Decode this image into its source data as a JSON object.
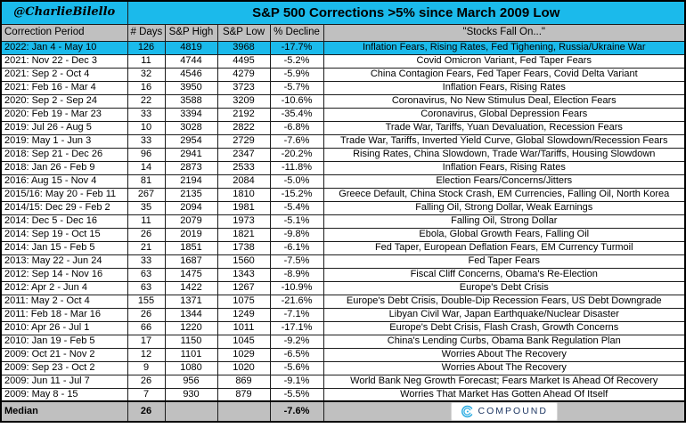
{
  "header": {
    "credit": "@CharlieBilello",
    "title": "S&P 500 Corrections >5% since March 2009 Low"
  },
  "chart_data": {
    "type": "table",
    "title": "S&P 500 Corrections >5% since March 2009 Low",
    "columns": [
      "Correction Period",
      "# Days",
      "S&P High",
      "S&P Low",
      "% Decline",
      "\"Stocks Fall On...\""
    ],
    "highlighted_row_index": 0,
    "rows": [
      [
        "2022: Jan 4 - May 10",
        126,
        4819,
        3968,
        "-17.7%",
        "Inflation Fears, Rising Rates, Fed Tighening, Russia/Ukraine War"
      ],
      [
        "2021: Nov 22 - Dec 3",
        11,
        4744,
        4495,
        "-5.2%",
        "Covid Omicron Variant, Fed Taper Fears"
      ],
      [
        "2021: Sep 2 - Oct 4",
        32,
        4546,
        4279,
        "-5.9%",
        "China Contagion Fears, Fed Taper Fears, Covid Delta Variant"
      ],
      [
        "2021: Feb 16 - Mar 4",
        16,
        3950,
        3723,
        "-5.7%",
        "Inflation Fears, Rising Rates"
      ],
      [
        "2020: Sep 2 - Sep 24",
        22,
        3588,
        3209,
        "-10.6%",
        "Coronavirus, No New Stimulus Deal, Election Fears"
      ],
      [
        "2020: Feb 19 - Mar 23",
        33,
        3394,
        2192,
        "-35.4%",
        "Coronavirus, Global Depression Fears"
      ],
      [
        "2019: Jul 26 - Aug 5",
        10,
        3028,
        2822,
        "-6.8%",
        "Trade War, Tariffs, Yuan Devaluation, Recession Fears"
      ],
      [
        "2019: May 1 - Jun 3",
        33,
        2954,
        2729,
        "-7.6%",
        "Trade War, Tariffs, Inverted Yield Curve, Global Slowdown/Recession Fears"
      ],
      [
        "2018: Sep 21 - Dec 26",
        96,
        2941,
        2347,
        "-20.2%",
        "Rising Rates, China Slowdown, Trade War/Tariffs, Housing Slowdown"
      ],
      [
        "2018: Jan 26 - Feb 9",
        14,
        2873,
        2533,
        "-11.8%",
        "Inflation Fears, Rising Rates"
      ],
      [
        "2016: Aug 15 - Nov 4",
        81,
        2194,
        2084,
        "-5.0%",
        "Election Fears/Concerns/Jitters"
      ],
      [
        "2015/16: May 20 - Feb 11",
        267,
        2135,
        1810,
        "-15.2%",
        "Greece Default, China Stock Crash, EM Currencies, Falling Oil, North Korea"
      ],
      [
        "2014/15: Dec 29 - Feb 2",
        35,
        2094,
        1981,
        "-5.4%",
        "Falling Oil, Strong Dollar, Weak Earnings"
      ],
      [
        "2014: Dec 5 - Dec 16",
        11,
        2079,
        1973,
        "-5.1%",
        "Falling Oil, Strong Dollar"
      ],
      [
        "2014: Sep 19 - Oct 15",
        26,
        2019,
        1821,
        "-9.8%",
        "Ebola, Global Growth Fears, Falling Oil"
      ],
      [
        "2014: Jan 15 - Feb 5",
        21,
        1851,
        1738,
        "-6.1%",
        "Fed Taper, European Deflation Fears, EM Currency Turmoil"
      ],
      [
        "2013: May 22 - Jun 24",
        33,
        1687,
        1560,
        "-7.5%",
        "Fed Taper Fears"
      ],
      [
        "2012: Sep 14 - Nov 16",
        63,
        1475,
        1343,
        "-8.9%",
        "Fiscal Cliff Concerns, Obama's Re-Election"
      ],
      [
        "2012: Apr 2 - Jun 4",
        63,
        1422,
        1267,
        "-10.9%",
        "Europe's Debt Crisis"
      ],
      [
        "2011: May 2 - Oct 4",
        155,
        1371,
        1075,
        "-21.6%",
        "Europe's Debt Crisis, Double-Dip Recession Fears, US Debt Downgrade"
      ],
      [
        "2011: Feb 18 - Mar 16",
        26,
        1344,
        1249,
        "-7.1%",
        "Libyan Civil War, Japan Earthquake/Nuclear Disaster"
      ],
      [
        "2010: Apr 26 - Jul 1",
        66,
        1220,
        1011,
        "-17.1%",
        "Europe's Debt Crisis, Flash Crash, Growth Concerns"
      ],
      [
        "2010: Jan 19 - Feb 5",
        17,
        1150,
        1045,
        "-9.2%",
        "China's Lending Curbs, Obama Bank Regulation Plan"
      ],
      [
        "2009: Oct 21 - Nov 2",
        12,
        1101,
        1029,
        "-6.5%",
        "Worries About The Recovery"
      ],
      [
        "2009: Sep 23 - Oct 2",
        9,
        1080,
        1020,
        "-5.6%",
        "Worries About The Recovery"
      ],
      [
        "2009: Jun 11 - Jul 7",
        26,
        956,
        869,
        "-9.1%",
        "World Bank Neg Growth Forecast; Fears Market Is Ahead Of Recovery"
      ],
      [
        "2009: May 8 - 15",
        7,
        930,
        879,
        "-5.5%",
        "Worries That Market Has Gotten Ahead Of Itself"
      ]
    ],
    "median_row": [
      "Median",
      "26",
      "",
      "",
      "-7.6%",
      ""
    ]
  },
  "footer_logo": {
    "text": "COMPOUND"
  },
  "colors": {
    "accent_cyan": "#1bbaeb",
    "header_gray": "#c0c0c0",
    "border": "#1c1c1c",
    "logo_icon": "#29abe2",
    "logo_text": "#1f3864"
  }
}
